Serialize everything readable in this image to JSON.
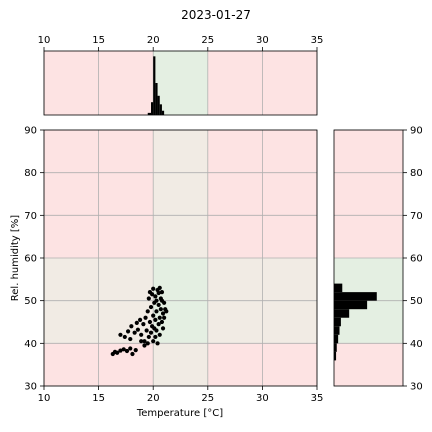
{
  "chart_data": {
    "type": "scatter",
    "title": "2023-01-27",
    "xlabel": "Temperature [°C]",
    "ylabel": "Rel. humidity [%]",
    "xlim": [
      10,
      35
    ],
    "ylim": [
      30,
      90
    ],
    "xticks": [
      10,
      15,
      20,
      25,
      30,
      35
    ],
    "yticks": [
      30,
      40,
      50,
      60,
      70,
      80,
      90
    ],
    "grid": true,
    "colors": {
      "bad_zone": "#fde3e3",
      "good_zone": "#e4efe2",
      "mixed_zone": "#f1ebe4",
      "points": "#000000",
      "grid": "#b0b0b0"
    },
    "comfort_zone": {
      "temperature": [
        20,
        25
      ],
      "humidity": [
        40,
        60
      ]
    },
    "scatter_points": [
      [
        16.3,
        37.5
      ],
      [
        16.5,
        38.0
      ],
      [
        16.7,
        37.8
      ],
      [
        17.0,
        38.3
      ],
      [
        17.3,
        38.6
      ],
      [
        17.6,
        38.2
      ],
      [
        17.9,
        38.8
      ],
      [
        18.1,
        37.5
      ],
      [
        18.4,
        38.4
      ],
      [
        17.0,
        42.0
      ],
      [
        17.4,
        41.5
      ],
      [
        17.7,
        42.8
      ],
      [
        17.9,
        41.0
      ],
      [
        18.0,
        44.0
      ],
      [
        18.3,
        42.5
      ],
      [
        18.5,
        44.8
      ],
      [
        18.6,
        43.2
      ],
      [
        18.8,
        45.5
      ],
      [
        18.9,
        42.0
      ],
      [
        19.1,
        44.5
      ],
      [
        19.2,
        40.5
      ],
      [
        19.3,
        46.0
      ],
      [
        19.4,
        43.0
      ],
      [
        19.5,
        47.5
      ],
      [
        19.6,
        41.5
      ],
      [
        19.7,
        45.0
      ],
      [
        19.8,
        42.5
      ],
      [
        19.8,
        48.5
      ],
      [
        19.9,
        44.0
      ],
      [
        20.0,
        46.5
      ],
      [
        20.0,
        40.5
      ],
      [
        20.1,
        43.5
      ],
      [
        20.1,
        49.5
      ],
      [
        20.2,
        41.5
      ],
      [
        20.2,
        45.5
      ],
      [
        20.2,
        51.0
      ],
      [
        20.3,
        43.0
      ],
      [
        20.3,
        47.5
      ],
      [
        20.4,
        52.5
      ],
      [
        20.4,
        40.0
      ],
      [
        20.5,
        44.5
      ],
      [
        20.5,
        49.0
      ],
      [
        20.5,
        51.8
      ],
      [
        20.6,
        46.0
      ],
      [
        20.6,
        42.0
      ],
      [
        20.7,
        50.5
      ],
      [
        20.7,
        48.0
      ],
      [
        20.8,
        45.0
      ],
      [
        20.8,
        52.0
      ],
      [
        20.9,
        47.0
      ],
      [
        20.9,
        43.5
      ],
      [
        21.0,
        49.5
      ],
      [
        21.0,
        46.0
      ],
      [
        21.1,
        48.0
      ],
      [
        21.2,
        47.5
      ],
      [
        19.6,
        50.5
      ],
      [
        19.7,
        52.0
      ],
      [
        19.9,
        51.5
      ],
      [
        20.0,
        52.8
      ],
      [
        20.3,
        50.0
      ],
      [
        20.6,
        53.0
      ],
      [
        20.8,
        50.0
      ],
      [
        19.5,
        40.0
      ],
      [
        19.2,
        39.5
      ],
      [
        18.9,
        40.5
      ]
    ],
    "hist_temperature": {
      "bins": [
        19.5,
        19.8,
        20.0,
        20.2,
        20.4,
        20.6,
        20.8,
        21.0
      ],
      "counts": [
        2,
        12,
        55,
        30,
        18,
        10,
        4
      ],
      "max": 60
    },
    "hist_humidity": {
      "bins": [
        36,
        38,
        40,
        42,
        44,
        46,
        48,
        50,
        52,
        54
      ],
      "counts": [
        3,
        4,
        6,
        8,
        10,
        22,
        48,
        62,
        12
      ],
      "max": 100
    }
  }
}
